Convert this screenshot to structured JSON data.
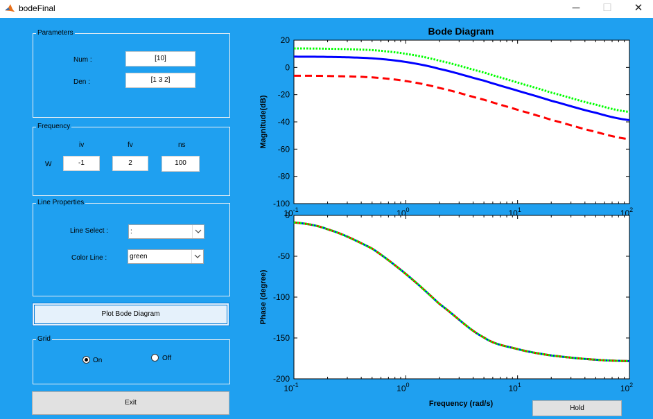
{
  "window": {
    "title": "bodeFinal",
    "minimize_glyph": "─",
    "maximize_glyph": "☐",
    "close_glyph": "✕",
    "icon": "matlab-logo-icon"
  },
  "parameters": {
    "title": "Parameters",
    "num_label": "Num :",
    "num_value": "[10]",
    "den_label": "Den :",
    "den_value": "[1 3 2]"
  },
  "frequency": {
    "title": "Frequency",
    "iv_label": "iv",
    "fv_label": "fv",
    "ns_label": "ns",
    "w_label": "W",
    "iv_value": "-1",
    "fv_value": "2",
    "ns_value": "100"
  },
  "line_properties": {
    "title": "Line Properties",
    "line_select_label": "Line Select :",
    "line_select_value": ":",
    "color_line_label": "Color Line :",
    "color_line_value": "green"
  },
  "plot_button": "Plot Bode Diagram",
  "grid": {
    "title": "Grid",
    "on_label": "On",
    "off_label": "Off",
    "selected": "On"
  },
  "exit_button": "Exit",
  "hold_button": "Hold",
  "colors": {
    "background": "#1fa0f0",
    "blue_series": "#0000ff",
    "red_series": "#ff0000",
    "green_series": "#00ff00"
  },
  "chart_data": [
    {
      "type": "line",
      "title": "Bode Diagram",
      "xlabel": "",
      "ylabel": "Magnitude(dB)",
      "xscale": "log",
      "xlim": [
        0.1,
        100
      ],
      "ylim": [
        -100,
        20
      ],
      "yticks": [
        "20",
        "0",
        "-20",
        "-40",
        "-60",
        "-80",
        "-100"
      ],
      "xticks": [
        {
          "base": "10",
          "exp": "-1"
        },
        {
          "base": "10",
          "exp": "0"
        },
        {
          "base": "10",
          "exp": "1"
        },
        {
          "base": "10",
          "exp": "2"
        }
      ],
      "grid": false,
      "x": [
        0.1,
        0.2,
        0.5,
        1,
        2,
        5,
        10,
        20,
        50,
        100
      ],
      "series": [
        {
          "color": "#00ff00",
          "style": "dotted",
          "values": [
            13.9,
            13.7,
            12.7,
            10.0,
            4.9,
            -3.7,
            -11.1,
            -18.5,
            -27.3,
            -32.7
          ]
        },
        {
          "color": "#0000ff",
          "style": "solid",
          "values": [
            7.9,
            7.7,
            6.7,
            4.0,
            -1.1,
            -9.7,
            -17.1,
            -24.5,
            -33.3,
            -38.7
          ]
        },
        {
          "color": "#ff0000",
          "style": "dashed",
          "values": [
            -6.1,
            -6.3,
            -7.3,
            -10.0,
            -15.1,
            -23.7,
            -31.1,
            -38.5,
            -47.3,
            -52.7
          ]
        }
      ]
    },
    {
      "type": "line",
      "title": "",
      "xlabel": "Frequency (rad/s)",
      "ylabel": "Phase (degree)",
      "xscale": "log",
      "xlim": [
        0.1,
        100
      ],
      "ylim": [
        -200,
        0
      ],
      "yticks": [
        "0",
        "-50",
        "-100",
        "-150",
        "-200"
      ],
      "xticks": [
        {
          "base": "10",
          "exp": "-1"
        },
        {
          "base": "10",
          "exp": "0"
        },
        {
          "base": "10",
          "exp": "1"
        },
        {
          "base": "10",
          "exp": "2"
        }
      ],
      "grid": false,
      "x": [
        0.1,
        0.2,
        0.5,
        1,
        2,
        5,
        10,
        20,
        50,
        100
      ],
      "series": [
        {
          "color": "#0000ff",
          "style": "solid",
          "values": [
            -8.6,
            -17.0,
            -40.6,
            -71.6,
            -108.4,
            -149.4,
            -163.6,
            -171.4,
            -176.6,
            -178.3
          ]
        },
        {
          "color": "#ff0000",
          "style": "dashed",
          "values": [
            -8.6,
            -17.0,
            -40.6,
            -71.6,
            -108.4,
            -149.4,
            -163.6,
            -171.4,
            -176.6,
            -178.3
          ]
        },
        {
          "color": "#00ff00",
          "style": "dotted",
          "values": [
            -8.6,
            -17.0,
            -40.6,
            -71.6,
            -108.4,
            -149.4,
            -163.6,
            -171.4,
            -176.6,
            -178.3
          ]
        }
      ]
    }
  ]
}
